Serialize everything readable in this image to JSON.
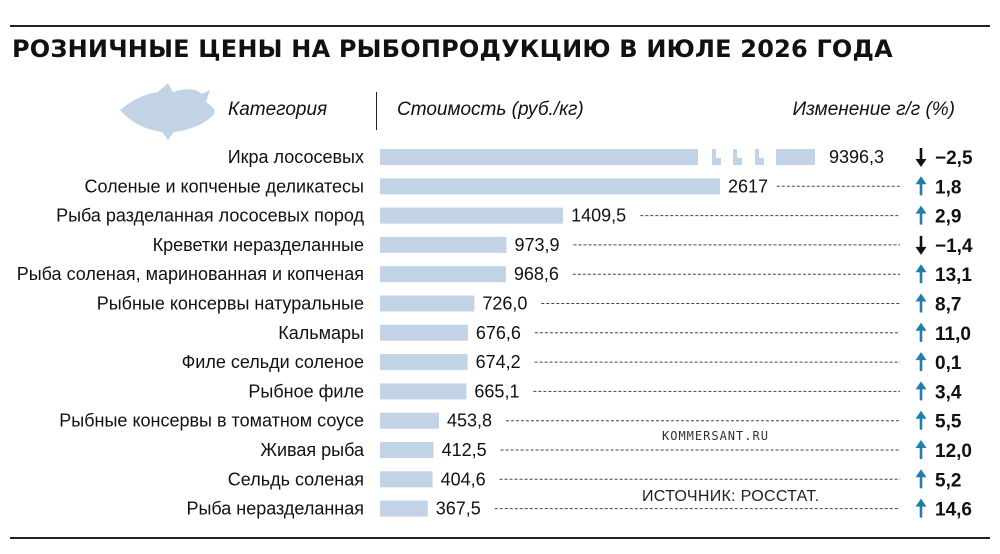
{
  "title": "РОЗНИЧНЫЕ ЦЕНЫ НА РЫБОПРОДУКЦИЮ В ИЮЛЕ 2026 ГОДА",
  "headers": {
    "category": "Категория",
    "cost": "Стоимость (руб./кг)",
    "change": "Изменение г/г (%)"
  },
  "watermark": "KOMMERSANT.RU",
  "source": "ИСТОЧНИК: РОССТАТ.",
  "colors": {
    "bar": "#c3d3e6",
    "up_arrow": "#1f7fa8",
    "down_arrow": "#111111",
    "text": "#111111"
  },
  "chart_data": {
    "type": "bar",
    "orientation": "horizontal",
    "broken_axis_first_bar": true,
    "categories": [
      "Икра лососевых",
      "Соленые и копченые деликатесы",
      "Рыба разделанная лососевых пород",
      "Креветки неразделанные",
      "Рыба соленая, маринованная и копченая",
      "Рыбные консервы натуральные",
      "Кальмары",
      "Филе сельди соленое",
      "Рыбное филе",
      "Рыбные консервы в томатном соусе",
      "Живая рыба",
      "Сельдь соленая",
      "Рыба неразделанная"
    ],
    "values": [
      9396.3,
      2617,
      1409.5,
      973.9,
      968.6,
      726.0,
      676.6,
      674.2,
      665.1,
      453.8,
      412.5,
      404.6,
      367.5
    ],
    "value_labels": [
      "9396,3",
      "2617",
      "1409,5",
      "973,9",
      "968,6",
      "726,0",
      "676,6",
      "674,2",
      "665,1",
      "453,8",
      "412,5",
      "404,6",
      "367,5"
    ],
    "changes": [
      -2.5,
      1.8,
      2.9,
      -1.4,
      13.1,
      8.7,
      11.0,
      0.1,
      3.4,
      5.5,
      12.0,
      5.2,
      14.6
    ],
    "change_labels": [
      "−2,5",
      "1,8",
      "2,9",
      "−1,4",
      "13,1",
      "8,7",
      "11,0",
      "0,1",
      "3,4",
      "5,5",
      "12,0",
      "5,2",
      "14,6"
    ],
    "icon": "fish-icon"
  }
}
